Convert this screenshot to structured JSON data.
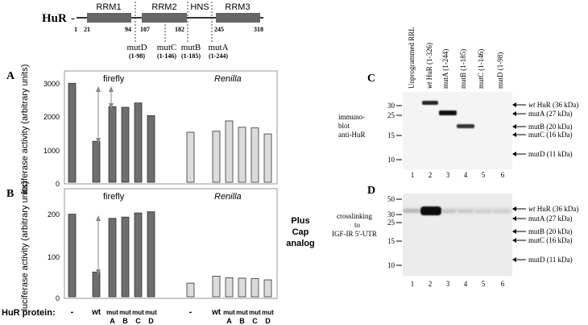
{
  "domain_diagram": {
    "protein_name": "HuR",
    "dash": "-",
    "domains": [
      "RRM1",
      "RRM2",
      "HNS",
      "RRM3"
    ],
    "positions": [
      "1",
      "21",
      "94",
      "107",
      "182",
      "245",
      "318"
    ],
    "mutants": [
      {
        "name": "mutD",
        "range": "(1-98)"
      },
      {
        "name": "mutC",
        "range": "(1-146)"
      },
      {
        "name": "mutB",
        "range": "(1-185)"
      },
      {
        "name": "mutA",
        "range": "(1-244)"
      }
    ]
  },
  "panel_letters": {
    "a": "A",
    "b": "B",
    "c": "C",
    "d": "D"
  },
  "plus_cap_label": [
    "Plus",
    "Cap",
    "analog"
  ],
  "hur_protein_label": "HuR protein:",
  "lane_labels": {
    "none": "-",
    "wt": "wt",
    "mut_top": "mut",
    "letters": [
      "A",
      "B",
      "C",
      "D"
    ]
  },
  "chart_data": [
    {
      "type": "bar",
      "panel": "A",
      "ylabel": "luciferase activity (arbitrary units)",
      "ylim": [
        0,
        3000
      ],
      "yticks": [
        "0",
        "1000",
        "2000",
        "3000"
      ],
      "group_labels": [
        "firefly",
        "Renilla"
      ],
      "categories": [
        "-",
        "wt",
        "mutA",
        "mutB",
        "mutC",
        "mutD"
      ],
      "series": [
        {
          "name": "firefly",
          "color": "#6e6e6e",
          "values": [
            2970,
            1230,
            2270,
            2250,
            2380,
            2000
          ]
        },
        {
          "name": "Renilla",
          "color": "#dcdcdc",
          "values": [
            1500,
            1530,
            1840,
            1650,
            1630,
            1450
          ]
        }
      ]
    },
    {
      "type": "bar",
      "panel": "B",
      "ylabel": "luciferase activity (arbitrary units)",
      "ylim": [
        0,
        250
      ],
      "yticks": [
        "0",
        "100",
        "200"
      ],
      "group_labels": [
        "firefly",
        "Renilla"
      ],
      "categories": [
        "-",
        "wt",
        "mutA",
        "mutB",
        "mutC",
        "mutD"
      ],
      "series": [
        {
          "name": "firefly",
          "color": "#6e6e6e",
          "values": [
            200,
            60,
            190,
            193,
            203,
            206
          ]
        },
        {
          "name": "Renilla",
          "color": "#dcdcdc",
          "values": [
            33,
            50,
            46,
            45,
            44,
            41
          ]
        }
      ]
    }
  ],
  "blot": {
    "lane_headers": [
      "Unprogrammed RRL",
      "wt HuR (1-326)",
      "mutA (1-244)",
      "mutB (1-185)",
      "mutC (1-146)",
      "mutD (1-98)"
    ],
    "lane_numbers": [
      "1",
      "2",
      "3",
      "4",
      "5",
      "6"
    ],
    "mw_markers": [
      "50",
      "30",
      "25",
      "15",
      "10"
    ],
    "band_labels": [
      {
        "prefix": "wt",
        "text": " HuR (36 kDa)"
      },
      {
        "prefix": "",
        "text": "mutA (27 kDa)"
      },
      {
        "prefix": "",
        "text": "mutB (20 kDa)"
      },
      {
        "prefix": "",
        "text": "mutC (16 kDa)"
      },
      {
        "prefix": "",
        "text": "mutD (11 kDa)"
      }
    ],
    "panel_c_desc": [
      "immuno-",
      "blot",
      "anti-HuR"
    ],
    "panel_d_desc": [
      "crosslinking",
      "to",
      "IGF-IR 5'-UTR"
    ]
  }
}
